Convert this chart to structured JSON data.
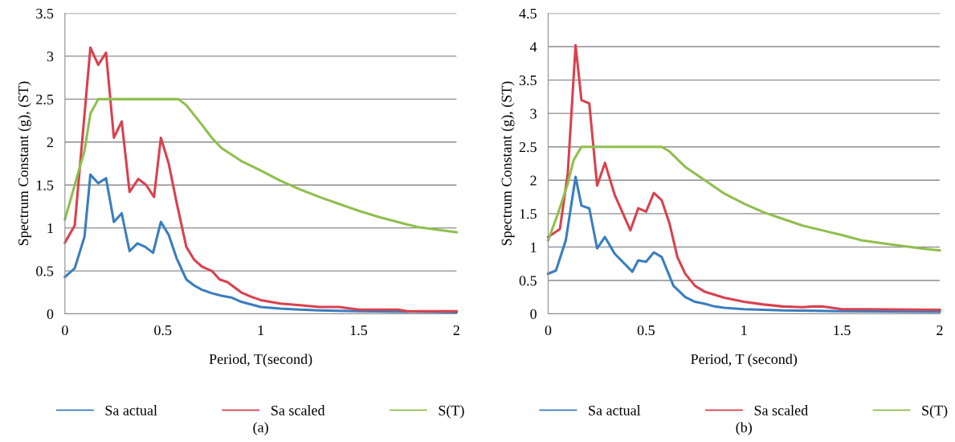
{
  "chart_data": [
    {
      "type": "line",
      "xlabel": "Period, T(second)",
      "ylabel": "Spectrum Constant (g), (ST)",
      "annotations": [
        "(a)"
      ],
      "xlim": [
        0,
        2
      ],
      "xticks": [
        0,
        0.5,
        1,
        1.5,
        2
      ],
      "ylim": [
        0,
        3.5
      ],
      "yticks": [
        0,
        0.5,
        1,
        1.5,
        2,
        2.5,
        3,
        3.5
      ],
      "grid": "y",
      "legend": "bottom",
      "marker": "none",
      "line_style": "solid",
      "series": [
        {
          "name": "Sa actual",
          "color": "#3a7dbf",
          "x": [
            0,
            0.05,
            0.1,
            0.13,
            0.17,
            0.21,
            0.25,
            0.29,
            0.33,
            0.37,
            0.41,
            0.45,
            0.49,
            0.53,
            0.57,
            0.62,
            0.66,
            0.7,
            0.75,
            0.8,
            0.85,
            0.9,
            0.95,
            1.0,
            1.05,
            1.1,
            1.2,
            1.3,
            1.5,
            2
          ],
          "values": [
            0.43,
            0.53,
            0.9,
            1.62,
            1.52,
            1.58,
            1.07,
            1.17,
            0.73,
            0.82,
            0.78,
            0.71,
            1.07,
            0.92,
            0.65,
            0.4,
            0.33,
            0.28,
            0.24,
            0.21,
            0.19,
            0.14,
            0.11,
            0.08,
            0.07,
            0.06,
            0.05,
            0.04,
            0.03,
            0.02
          ]
        },
        {
          "name": "Sa scaled",
          "color": "#d9414e",
          "x": [
            0,
            0.05,
            0.13,
            0.17,
            0.21,
            0.25,
            0.29,
            0.33,
            0.375,
            0.415,
            0.455,
            0.49,
            0.53,
            0.57,
            0.62,
            0.66,
            0.7,
            0.75,
            0.79,
            0.83,
            0.9,
            0.95,
            1.0,
            1.1,
            1.2,
            1.3,
            1.4,
            1.5,
            1.7,
            1.75,
            2
          ],
          "values": [
            0.83,
            1.03,
            3.1,
            2.9,
            3.04,
            2.05,
            2.24,
            1.42,
            1.57,
            1.5,
            1.36,
            2.05,
            1.75,
            1.3,
            0.78,
            0.63,
            0.55,
            0.5,
            0.4,
            0.37,
            0.25,
            0.2,
            0.16,
            0.12,
            0.1,
            0.08,
            0.08,
            0.05,
            0.05,
            0.03,
            0.03
          ]
        },
        {
          "name": "S(T)",
          "color": "#8fbf4d",
          "x": [
            0,
            0.05,
            0.1,
            0.13,
            0.17,
            0.58,
            0.62,
            0.7,
            0.75,
            0.8,
            0.9,
            1.0,
            1.1,
            1.2,
            1.3,
            1.4,
            1.5,
            1.6,
            1.7,
            1.8,
            1.9,
            2
          ],
          "values": [
            1.1,
            1.5,
            1.9,
            2.33,
            2.5,
            2.5,
            2.43,
            2.2,
            2.05,
            1.93,
            1.78,
            1.67,
            1.55,
            1.45,
            1.36,
            1.28,
            1.2,
            1.13,
            1.07,
            1.01,
            0.98,
            0.95
          ]
        }
      ]
    },
    {
      "type": "line",
      "xlabel": "Period, T (second)",
      "ylabel": "Spectrum Constant (g), (ST)",
      "annotations": [
        "(b)"
      ],
      "xlim": [
        0,
        2
      ],
      "xticks": [
        0,
        0.5,
        1,
        1.5,
        2
      ],
      "ylim": [
        0,
        4.5
      ],
      "yticks": [
        0,
        0.5,
        1,
        1.5,
        2,
        2.5,
        3,
        3.5,
        4,
        4.5
      ],
      "grid": "y",
      "legend": "bottom",
      "marker": "none",
      "line_style": "solid",
      "series": [
        {
          "name": "Sa actual",
          "color": "#3a7dbf",
          "x": [
            0,
            0.04,
            0.09,
            0.14,
            0.17,
            0.21,
            0.25,
            0.29,
            0.34,
            0.43,
            0.46,
            0.5,
            0.54,
            0.58,
            0.64,
            0.7,
            0.75,
            0.8,
            0.85,
            0.9,
            1.0,
            1.2,
            1.5,
            2
          ],
          "values": [
            0.6,
            0.65,
            1.1,
            2.05,
            1.62,
            1.58,
            0.98,
            1.15,
            0.9,
            0.63,
            0.8,
            0.78,
            0.92,
            0.85,
            0.42,
            0.25,
            0.18,
            0.15,
            0.11,
            0.09,
            0.07,
            0.05,
            0.04,
            0.03
          ]
        },
        {
          "name": "Sa scaled",
          "color": "#d9414e",
          "x": [
            0,
            0.06,
            0.1,
            0.14,
            0.17,
            0.21,
            0.25,
            0.29,
            0.34,
            0.42,
            0.46,
            0.5,
            0.54,
            0.58,
            0.62,
            0.66,
            0.7,
            0.75,
            0.8,
            0.9,
            1.0,
            1.1,
            1.2,
            1.3,
            1.35,
            1.4,
            1.5,
            1.6,
            2
          ],
          "values": [
            1.15,
            1.27,
            2.1,
            4.02,
            3.2,
            3.15,
            1.92,
            2.26,
            1.78,
            1.25,
            1.58,
            1.53,
            1.81,
            1.7,
            1.35,
            0.85,
            0.6,
            0.42,
            0.33,
            0.24,
            0.18,
            0.14,
            0.11,
            0.1,
            0.11,
            0.11,
            0.07,
            0.07,
            0.06
          ]
        },
        {
          "name": "S(T)",
          "color": "#8fbf4d",
          "x": [
            0,
            0.05,
            0.1,
            0.13,
            0.17,
            0.58,
            0.62,
            0.7,
            0.8,
            0.9,
            1.0,
            1.1,
            1.2,
            1.3,
            1.4,
            1.5,
            1.6,
            1.7,
            1.8,
            1.9,
            2
          ],
          "values": [
            1.1,
            1.5,
            1.95,
            2.3,
            2.5,
            2.5,
            2.43,
            2.2,
            2.0,
            1.8,
            1.65,
            1.52,
            1.42,
            1.32,
            1.25,
            1.18,
            1.1,
            1.06,
            1.02,
            0.98,
            0.95
          ]
        }
      ]
    }
  ]
}
